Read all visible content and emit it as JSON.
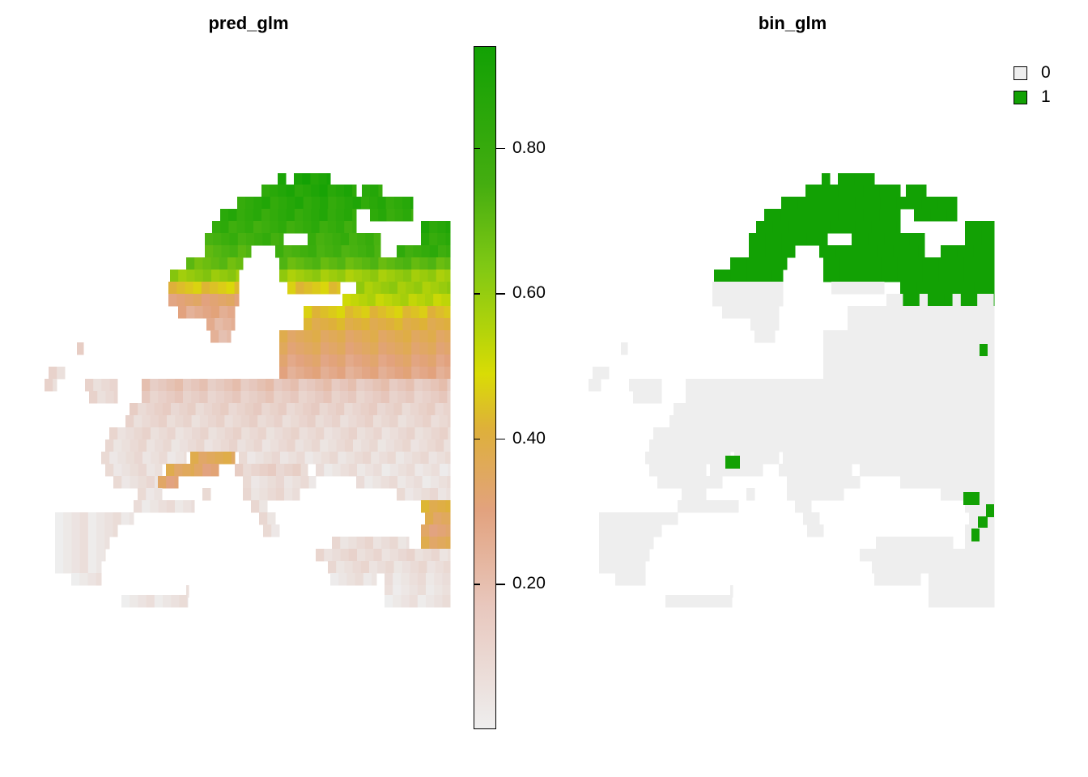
{
  "panels": {
    "left_title": "pred_glm",
    "right_title": "bin_glm"
  },
  "colorbar": {
    "ticks": [
      {
        "value": 0.2,
        "label": "0.20"
      },
      {
        "value": 0.4,
        "label": "0.40"
      },
      {
        "value": 0.6,
        "label": "0.60"
      },
      {
        "value": 0.8,
        "label": "0.80"
      }
    ],
    "range": [
      0.0,
      0.94
    ]
  },
  "legend": {
    "items": [
      {
        "label": "0",
        "color": "#eeeeee"
      },
      {
        "label": "1",
        "color": "#12a104"
      }
    ]
  },
  "colors": {
    "low": "#eeeeee",
    "mid_low": "#e2a27e",
    "mid": "#d9dc05",
    "high": "#12a104"
  }
}
